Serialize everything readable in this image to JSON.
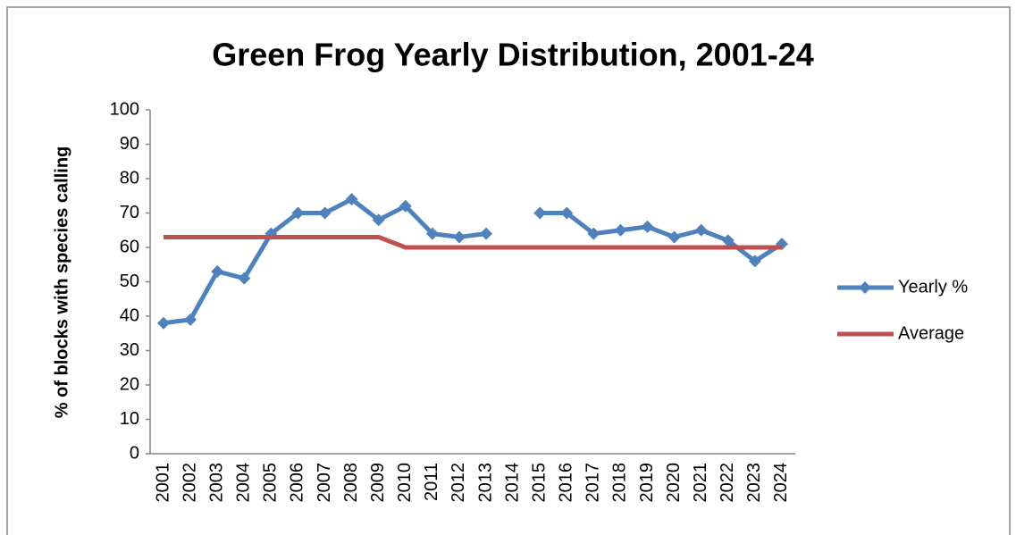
{
  "chart_data": {
    "type": "line",
    "title": "Green Frog Yearly Distribution, 2001-24",
    "y_label": "% of blocks with species calling",
    "categories": [
      "2001",
      "2002",
      "2003",
      "2004",
      "2005",
      "2006",
      "2007",
      "2008",
      "2009",
      "2010",
      "2011",
      "2012",
      "2013",
      "2014",
      "2015",
      "2016",
      "2017",
      "2018",
      "2019",
      "2020",
      "2021",
      "2022",
      "2023",
      "2024"
    ],
    "series": [
      {
        "name": "Yearly %",
        "color": "#4f81bd",
        "marker": "diamond",
        "values": [
          38,
          39,
          53,
          51,
          64,
          70,
          70,
          74,
          68,
          72,
          64,
          63,
          64,
          null,
          70,
          70,
          64,
          65,
          66,
          63,
          65,
          62,
          56,
          61
        ]
      },
      {
        "name": "Average",
        "color": "#c0504d",
        "marker": "none",
        "values": [
          63,
          63,
          63,
          63,
          63,
          63,
          63,
          63,
          63,
          60,
          60,
          60,
          60,
          60,
          60,
          60,
          60,
          60,
          60,
          60,
          60,
          60,
          60,
          60
        ]
      }
    ],
    "ylim": [
      0,
      100
    ],
    "yticks": [
      0,
      10,
      20,
      30,
      40,
      50,
      60,
      70,
      80,
      90,
      100
    ],
    "grid": false,
    "legend": "right"
  }
}
